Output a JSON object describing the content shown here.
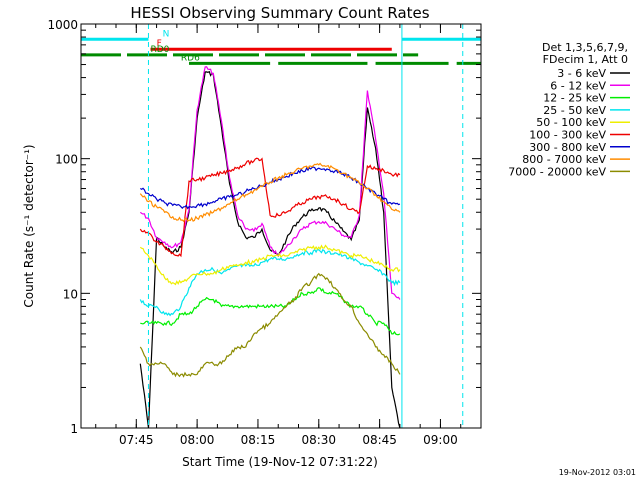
{
  "chart_data": {
    "type": "line",
    "title": "HESSI Observing Summary Count Rates",
    "xlabel": "Start Time (19-Nov-12 07:31:22)",
    "ylabel": "Count Rate (s⁻¹ detector⁻¹)",
    "footer_date": "19-Nov-2012 03:01",
    "y_scale": "log",
    "ylim": [
      1,
      1000
    ],
    "xlim": [
      "07:31:22",
      "09:10:00"
    ],
    "x_ticks": [
      "07:45",
      "08:00",
      "08:15",
      "08:30",
      "08:45",
      "09:00"
    ],
    "y_ticks": [
      {
        "value": 1,
        "label": "1"
      },
      {
        "value": 10,
        "label": "10"
      },
      {
        "value": 100,
        "label": "100"
      },
      {
        "value": 1000,
        "label": "1000"
      }
    ],
    "legend": {
      "placement": "right",
      "header": [
        "Det 1,3,5,6,7,9,",
        "FDecim 1, Att 0"
      ]
    },
    "flags": [
      {
        "label": "N",
        "color": "#00e5ee",
        "segments": [
          [
            "07:31:22",
            "07:48:00"
          ],
          [
            "08:50:30",
            "09:10:00"
          ]
        ],
        "level": 770
      },
      {
        "label": "F",
        "color": "#ee0000",
        "segments": [
          [
            "07:48:30",
            "08:48:00"
          ]
        ],
        "level": 650
      },
      {
        "label": "RD0",
        "color": "#008b00",
        "segments": [
          [
            "07:31:22",
            "08:54:30"
          ]
        ],
        "level": 590,
        "dashed": true
      },
      {
        "label": "RD6",
        "color": "#008b00",
        "segments": [
          [
            "07:58:00",
            "08:18:00"
          ],
          [
            "08:20:00",
            "08:42:00"
          ],
          [
            "08:44:00",
            "09:02:00"
          ],
          [
            "09:04:00",
            "09:10:00"
          ]
        ],
        "level": 510
      }
    ],
    "vlines": [
      {
        "x": "07:31:22",
        "color": "#00e5ee",
        "dashed": false
      },
      {
        "x": "07:48:00",
        "color": "#00e5ee",
        "dashed": true
      },
      {
        "x": "08:50:30",
        "color": "#00e5ee",
        "dashed": false
      },
      {
        "x": "09:05:30",
        "color": "#00e5ee",
        "dashed": true
      }
    ],
    "x_time": [
      "07:46",
      "07:48",
      "07:50",
      "07:52",
      "07:54",
      "07:56",
      "07:58",
      "08:00",
      "08:02",
      "08:04",
      "08:06",
      "08:08",
      "08:10",
      "08:12",
      "08:14",
      "08:16",
      "08:18",
      "08:20",
      "08:22",
      "08:24",
      "08:26",
      "08:28",
      "08:30",
      "08:32",
      "08:34",
      "08:36",
      "08:38",
      "08:40",
      "08:42",
      "08:44",
      "08:46",
      "08:48",
      "08:50"
    ],
    "series": [
      {
        "name": "3 - 6 keV",
        "color": "#000000",
        "values": [
          3,
          1,
          26,
          22,
          20,
          22,
          40,
          200,
          440,
          420,
          170,
          65,
          34,
          26,
          26,
          30,
          21,
          19,
          25,
          32,
          37,
          41,
          43,
          40,
          34,
          29,
          25,
          35,
          240,
          120,
          40,
          2,
          1
        ]
      },
      {
        "name": "6 - 12 keV",
        "color": "#ee00ee",
        "values": [
          40,
          36,
          26,
          24,
          22,
          24,
          42,
          230,
          480,
          430,
          190,
          72,
          38,
          30,
          29,
          33,
          22,
          19,
          22,
          26,
          30,
          33,
          34,
          33,
          30,
          27,
          26,
          38,
          320,
          140,
          55,
          10,
          9
        ]
      },
      {
        "name": "12 - 25 keV",
        "color": "#00ee00",
        "values": [
          6,
          6,
          6,
          6,
          6,
          7,
          7,
          8,
          9,
          9,
          8,
          8,
          8,
          8,
          8,
          8,
          8,
          8,
          8,
          9,
          10,
          10,
          11,
          10,
          10,
          9,
          8,
          8,
          7,
          6,
          6,
          5,
          5
        ]
      },
      {
        "name": "25 - 50 keV",
        "color": "#00e5ee",
        "values": [
          9,
          8,
          8,
          7,
          7,
          8,
          11,
          14,
          15,
          15,
          14,
          15,
          16,
          16,
          16,
          17,
          18,
          18,
          18,
          19,
          20,
          20,
          21,
          20,
          20,
          19,
          18,
          17,
          16,
          15,
          14,
          12,
          12
        ]
      },
      {
        "name": "50 - 100 keV",
        "color": "#eeee00",
        "values": [
          22,
          19,
          16,
          13,
          12,
          12,
          13,
          14,
          14,
          14,
          15,
          16,
          16,
          17,
          17,
          18,
          19,
          19,
          19,
          20,
          21,
          22,
          22,
          22,
          21,
          20,
          19,
          19,
          18,
          17,
          16,
          15,
          15
        ]
      },
      {
        "name": "100 - 300 keV",
        "color": "#ee0000",
        "values": [
          30,
          28,
          24,
          22,
          20,
          19,
          68,
          70,
          72,
          75,
          78,
          82,
          86,
          92,
          96,
          100,
          38,
          38,
          40,
          44,
          47,
          50,
          52,
          52,
          50,
          46,
          42,
          40,
          88,
          84,
          82,
          76,
          76
        ]
      },
      {
        "name": "300 - 800 keV",
        "color": "#0000cd",
        "values": [
          60,
          55,
          50,
          47,
          45,
          44,
          44,
          45,
          46,
          48,
          50,
          52,
          54,
          57,
          60,
          63,
          67,
          70,
          74,
          78,
          81,
          84,
          85,
          84,
          81,
          77,
          72,
          66,
          60,
          55,
          50,
          46,
          46
        ]
      },
      {
        "name": "800 - 7000 keV",
        "color": "#ff8c00",
        "values": [
          55,
          48,
          44,
          40,
          37,
          35,
          35,
          36,
          38,
          40,
          43,
          46,
          50,
          54,
          58,
          62,
          67,
          72,
          76,
          80,
          85,
          88,
          90,
          88,
          84,
          78,
          72,
          66,
          60,
          54,
          48,
          42,
          40
        ]
      },
      {
        "name": "7000 - 20000 keV",
        "color": "#8b8b00",
        "values": [
          4,
          3,
          3,
          3,
          2.5,
          2.5,
          2.5,
          2.5,
          3,
          3,
          3,
          3.5,
          4,
          4,
          5,
          5.5,
          6,
          7,
          8,
          9,
          11,
          12,
          14,
          13,
          11,
          9,
          8,
          6,
          5,
          4,
          3.5,
          3,
          2.5
        ]
      }
    ]
  }
}
